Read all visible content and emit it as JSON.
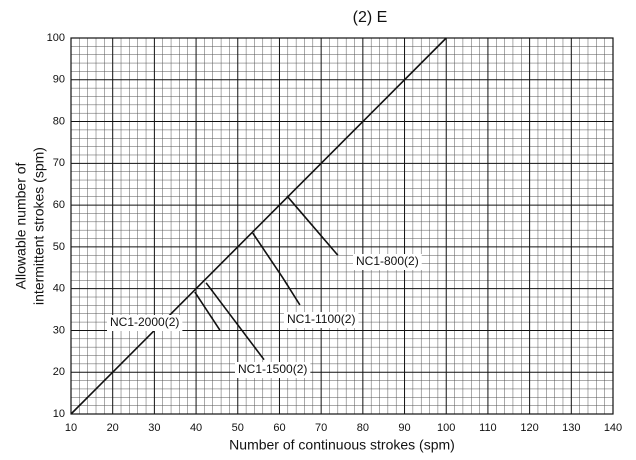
{
  "chart_data": {
    "type": "line",
    "title": "(2) E",
    "x_label": "Number of continuous strokes (spm)",
    "y_label": [
      "Allowable number of",
      "intermittent strokes (spm)"
    ],
    "xlim": [
      10,
      140
    ],
    "xticks": [
      10,
      20,
      30,
      40,
      50,
      60,
      70,
      80,
      90,
      100,
      110,
      120,
      130,
      140
    ],
    "ylim": [
      10,
      100
    ],
    "yticks": [
      10,
      20,
      30,
      40,
      50,
      60,
      70,
      80,
      90,
      100
    ],
    "grid": true,
    "series": [
      {
        "color": "#111111",
        "x": [
          10,
          100
        ],
        "values": [
          10,
          100
        ]
      },
      {
        "name": "NC1-800(2)",
        "color": "#111111",
        "x": [
          61.8,
          74
        ],
        "values": [
          62.2,
          48
        ]
      },
      {
        "name": "NC1-1100(2)",
        "color": "#111111",
        "x": [
          53.6,
          60.8,
          64.9
        ],
        "values": [
          53.3,
          42.6,
          36.1
        ]
      },
      {
        "name": "NC1-1500(2)",
        "color": "#111111",
        "x": [
          42.4,
          56.3
        ],
        "values": [
          41.4,
          23
        ]
      },
      {
        "name": "NC1-2000(2)",
        "color": "#111111",
        "x": [
          39.7,
          45.7
        ],
        "values": [
          39.2,
          30.1
        ]
      }
    ]
  }
}
